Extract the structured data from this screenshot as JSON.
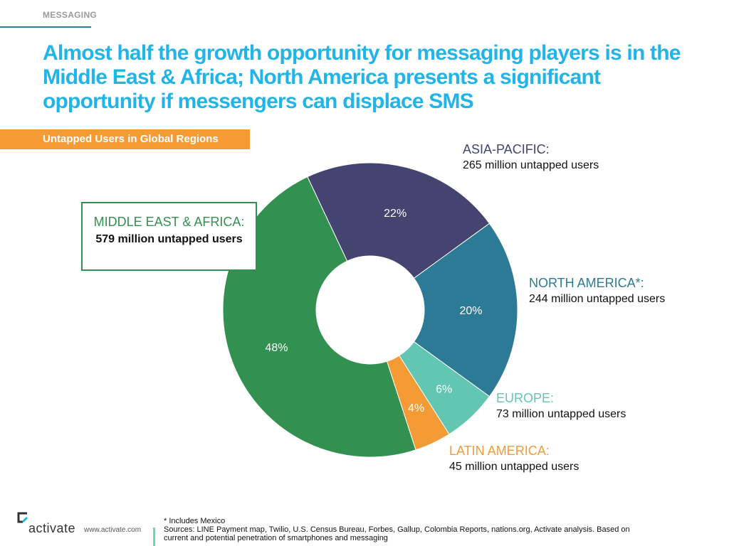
{
  "header": {
    "section": "MESSAGING",
    "headline": "Almost half the growth opportunity for messaging players is in the Middle East & Africa; North America presents a significant opportunity if messengers can displace SMS"
  },
  "chart_data": {
    "type": "pie",
    "donut": true,
    "title": "Untapped Users in Global Regions",
    "slices": [
      {
        "name": "ASIA-PACIFIC:",
        "percent": 22,
        "value_text": "265 million untapped users",
        "color": "#454370"
      },
      {
        "name": "NORTH AMERICA*:",
        "percent": 20,
        "value_text": "244 million untapped users",
        "color": "#2c7a95"
      },
      {
        "name": "EUROPE:",
        "percent": 6,
        "value_text": "73 million untapped users",
        "color": "#62c6b3"
      },
      {
        "name": "LATIN AMERICA:",
        "percent": 4,
        "value_text": "45 million untapped users",
        "color": "#f49b35"
      },
      {
        "name": "MIDDLE EAST & AFRICA:",
        "percent": 48,
        "value_text": "579 million untapped users",
        "color": "#329051"
      }
    ],
    "data_labels": [
      "22%",
      "20%",
      "6%",
      "4%",
      "48%"
    ]
  },
  "footer": {
    "logo_text": "activate",
    "url": "www.activate.com",
    "footnote": "* Includes Mexico",
    "sources": "Sources: LINE Payment map, Twilio, U.S. Census Bureau, Forbes, Gallup, Colombia Reports, nations.org, Activate analysis.  Based on current and potential penetration of smartphones and messaging"
  }
}
